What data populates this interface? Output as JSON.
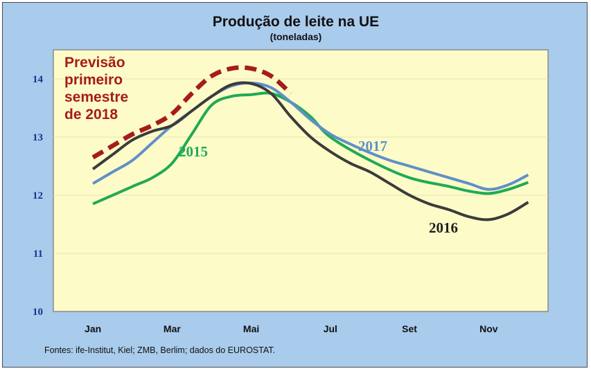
{
  "colors": {
    "background": "#a9cbec",
    "plot_background": "#fdfbc8",
    "plot_border": "#8a8a8a",
    "gridline": "#e6e3b0"
  },
  "chart_data": {
    "type": "line",
    "title": "Produção de leite na UE",
    "subtitle": "(toneladas)",
    "xlabel": "",
    "ylabel": "",
    "x_tick_labels": [
      "Jan",
      "Mar",
      "Mai",
      "Jul",
      "Set",
      "Nov"
    ],
    "x_tick_positions": [
      1,
      3,
      5,
      7,
      9,
      11
    ],
    "y_ticks": [
      10,
      11,
      12,
      13,
      14
    ],
    "xlim": [
      0,
      12.5
    ],
    "ylim": [
      10,
      14.5
    ],
    "grid": true,
    "series": [
      {
        "name": "2015",
        "label": "2015",
        "color": "#1faa55",
        "style": "solid",
        "x": [
          1,
          2,
          2.5,
          3,
          3.5,
          4,
          4.5,
          5,
          5.5,
          6,
          6.5,
          7,
          8,
          9,
          10,
          10.5,
          11,
          11.5,
          12
        ],
        "values": [
          11.85,
          12.15,
          12.3,
          12.55,
          13.05,
          13.55,
          13.7,
          13.73,
          13.75,
          13.6,
          13.35,
          13.0,
          12.6,
          12.3,
          12.15,
          12.07,
          12.03,
          12.1,
          12.22
        ]
      },
      {
        "name": "2016",
        "label": "2016",
        "color": "#3b3b3b",
        "style": "solid",
        "x": [
          1,
          1.5,
          2,
          2.5,
          3,
          3.5,
          4,
          4.5,
          5,
          5.5,
          6,
          6.5,
          7,
          7.5,
          8,
          8.5,
          9,
          9.5,
          10,
          10.5,
          11,
          11.5,
          12
        ],
        "values": [
          12.45,
          12.7,
          12.95,
          13.1,
          13.2,
          13.45,
          13.7,
          13.9,
          13.92,
          13.75,
          13.35,
          13.0,
          12.75,
          12.55,
          12.4,
          12.2,
          12.0,
          11.85,
          11.75,
          11.63,
          11.58,
          11.68,
          11.88
        ]
      },
      {
        "name": "2017",
        "label": "2017",
        "color": "#5f90c8",
        "style": "solid",
        "x": [
          1,
          1.5,
          2,
          2.5,
          3,
          3.5,
          4,
          4.5,
          5,
          5.5,
          6,
          6.5,
          7,
          7.5,
          8,
          8.5,
          9,
          9.5,
          10,
          10.5,
          11,
          11.5,
          12
        ],
        "values": [
          12.2,
          12.4,
          12.6,
          12.9,
          13.2,
          13.45,
          13.7,
          13.88,
          13.93,
          13.85,
          13.6,
          13.3,
          13.05,
          12.88,
          12.73,
          12.6,
          12.5,
          12.4,
          12.3,
          12.2,
          12.1,
          12.18,
          12.35
        ]
      },
      {
        "name": "Previsão primeiro semestre de 2018",
        "color": "#a51c1c",
        "style": "dashed",
        "x": [
          1,
          1.5,
          2,
          2.5,
          3,
          3.5,
          4,
          4.5,
          5,
          5.5,
          6
        ],
        "values": [
          12.65,
          12.85,
          13.05,
          13.2,
          13.4,
          13.75,
          14.05,
          14.18,
          14.18,
          14.05,
          13.75
        ]
      }
    ],
    "annotations": {
      "forecast_lines": [
        "Previsão",
        "primeiro",
        "semestre",
        "de 2018"
      ],
      "series_labels": [
        "2015",
        "2017",
        "2016"
      ]
    },
    "source": "Fontes: ife-Institut, Kiel; ZMB, Berlim; dados do EUROSTAT."
  }
}
